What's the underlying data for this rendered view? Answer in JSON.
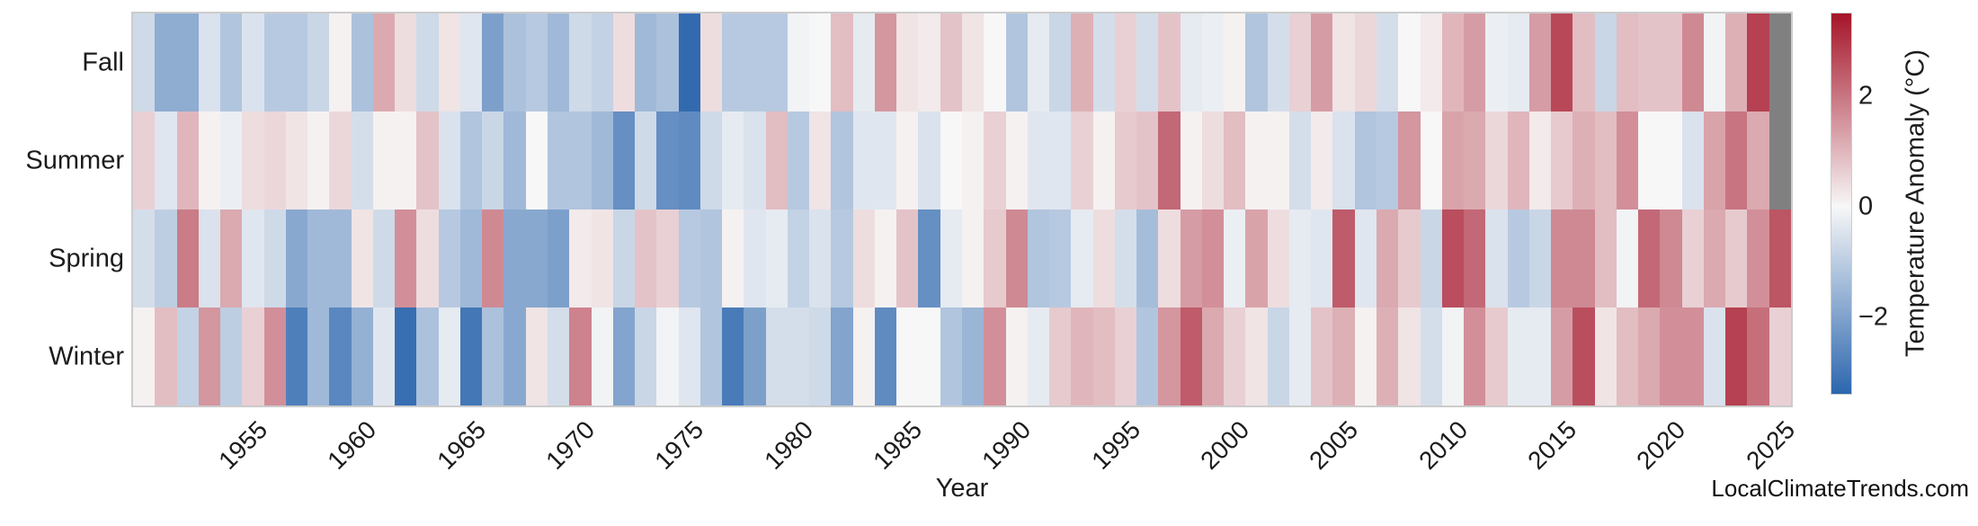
{
  "watermark": "LocalClimateTrends.com",
  "chart_data": {
    "type": "heatmap",
    "xlabel": "Year",
    "colorbar_label": "Temperature Anomaly (°C)",
    "colorbar_ticks": [
      2,
      0,
      -2
    ],
    "value_range": [
      -3.5,
      3.5
    ],
    "legend_position": "right",
    "grid": false,
    "row_order_top_to_bottom": [
      "Fall",
      "Summer",
      "Spring",
      "Winter"
    ],
    "x_ticks": [
      1955,
      1960,
      1965,
      1970,
      1975,
      1980,
      1985,
      1990,
      1995,
      2000,
      2005,
      2010,
      2015,
      2020,
      2025
    ],
    "years": [
      1950,
      1951,
      1952,
      1953,
      1954,
      1955,
      1956,
      1957,
      1958,
      1959,
      1960,
      1961,
      1962,
      1963,
      1964,
      1965,
      1966,
      1967,
      1968,
      1969,
      1970,
      1971,
      1972,
      1973,
      1974,
      1975,
      1976,
      1977,
      1978,
      1979,
      1980,
      1981,
      1982,
      1983,
      1984,
      1985,
      1986,
      1987,
      1988,
      1989,
      1990,
      1991,
      1992,
      1993,
      1994,
      1995,
      1996,
      1997,
      1998,
      1999,
      2000,
      2001,
      2002,
      2003,
      2004,
      2005,
      2006,
      2007,
      2008,
      2009,
      2010,
      2011,
      2012,
      2013,
      2014,
      2015,
      2016,
      2017,
      2018,
      2019,
      2020,
      2021,
      2022,
      2023,
      2024,
      2025
    ],
    "series": [
      {
        "name": "Fall",
        "values": [
          -0.7,
          -1.8,
          -1.8,
          -0.5,
          -1.2,
          -0.5,
          -1.1,
          -1.1,
          -0.8,
          0.1,
          -1.3,
          1.2,
          0.4,
          -0.7,
          0.3,
          -0.4,
          -2.1,
          -1.3,
          -1.1,
          -1.5,
          -0.7,
          -0.9,
          0.4,
          -1.5,
          -1.3,
          -3.4,
          0.4,
          -1.1,
          -1.1,
          -1.1,
          -0.1,
          0.0,
          0.9,
          -0.3,
          1.5,
          0.3,
          0.2,
          0.8,
          0.3,
          0.0,
          -1.2,
          -0.3,
          -0.8,
          1.1,
          -0.6,
          0.6,
          -0.6,
          0.8,
          -0.3,
          -0.2,
          0.1,
          -1.2,
          -0.6,
          0.6,
          1.4,
          0.3,
          0.5,
          -0.6,
          0.0,
          0.2,
          1.0,
          1.4,
          -0.2,
          -0.3,
          1.4,
          2.7,
          0.9,
          -0.8,
          0.9,
          0.8,
          0.8,
          1.7,
          -0.1,
          1.1,
          2.8,
          null
        ]
      },
      {
        "name": "Summer",
        "values": [
          0.6,
          -0.4,
          1.0,
          0.1,
          -0.2,
          0.4,
          0.5,
          0.3,
          0.1,
          0.5,
          -0.6,
          0.1,
          0.1,
          0.8,
          -0.5,
          -1.2,
          -0.8,
          -1.5,
          0.0,
          -1.2,
          -1.2,
          -1.5,
          -2.5,
          -0.7,
          -2.5,
          -2.6,
          -0.7,
          -0.3,
          -0.5,
          0.9,
          -1.1,
          0.3,
          -1.2,
          -0.4,
          -0.4,
          0.1,
          -0.5,
          0.0,
          0.1,
          0.6,
          0.1,
          -0.4,
          -0.4,
          0.6,
          0.1,
          0.7,
          0.8,
          2.2,
          0.1,
          0.4,
          0.9,
          0.1,
          0.1,
          -0.6,
          0.2,
          -0.5,
          -1.2,
          -1.1,
          1.5,
          0.0,
          1.3,
          1.2,
          0.5,
          1.0,
          0.2,
          0.7,
          1.1,
          0.9,
          1.6,
          0.0,
          0.0,
          -0.5,
          1.3,
          2.0,
          1.2,
          null
        ]
      },
      {
        "name": "Spring",
        "values": [
          -0.6,
          -1.0,
          1.9,
          -0.5,
          1.2,
          -0.4,
          -0.7,
          -1.9,
          -1.5,
          -1.5,
          0.3,
          -0.7,
          1.6,
          0.4,
          -1.1,
          -1.5,
          1.7,
          -1.9,
          -1.9,
          -2.1,
          0.2,
          0.3,
          -0.8,
          0.8,
          0.6,
          -1.1,
          -1.2,
          0.1,
          -0.4,
          -0.3,
          -0.9,
          -0.5,
          -1.1,
          0.4,
          0.1,
          0.8,
          -2.5,
          -0.3,
          0.1,
          0.7,
          1.7,
          -1.2,
          -1.1,
          -0.3,
          0.4,
          -0.6,
          -1.4,
          0.4,
          1.4,
          1.6,
          -0.2,
          1.3,
          0.4,
          -0.3,
          -0.4,
          2.4,
          -0.4,
          1.2,
          0.7,
          -0.8,
          2.6,
          2.2,
          -0.5,
          -1.1,
          -0.8,
          1.7,
          1.7,
          0.9,
          -0.1,
          2.2,
          1.7,
          0.6,
          1.2,
          0.7,
          1.6,
          2.5
        ]
      },
      {
        "name": "Winter",
        "values": [
          0.1,
          0.9,
          -0.9,
          1.5,
          -1.0,
          0.6,
          1.6,
          -2.9,
          -1.5,
          -2.7,
          -1.7,
          -0.4,
          -3.3,
          -1.3,
          -0.3,
          -3.1,
          -1.3,
          -1.9,
          0.3,
          -0.6,
          1.8,
          -0.1,
          -2.0,
          -0.8,
          -0.1,
          -0.4,
          -1.2,
          -3.0,
          -2.1,
          -0.6,
          -0.6,
          -0.7,
          -2.0,
          0.1,
          -2.6,
          0.0,
          0.0,
          -1.2,
          -1.6,
          1.6,
          0.1,
          -0.3,
          0.7,
          1.0,
          0.9,
          0.6,
          -1.2,
          1.5,
          2.4,
          1.2,
          0.6,
          0.3,
          -0.8,
          -0.3,
          0.8,
          1.1,
          0.1,
          1.1,
          0.3,
          -0.6,
          -0.1,
          1.6,
          0.7,
          -0.3,
          -0.3,
          1.4,
          2.6,
          0.3,
          0.9,
          1.2,
          1.6,
          1.6,
          -0.5,
          2.8,
          2.1,
          0.6
        ]
      }
    ],
    "colors": {
      "negative_end": "#2c66ae",
      "midpoint": "#f7f7f7",
      "positive_end": "#a51429",
      "missing": "#808080"
    }
  }
}
